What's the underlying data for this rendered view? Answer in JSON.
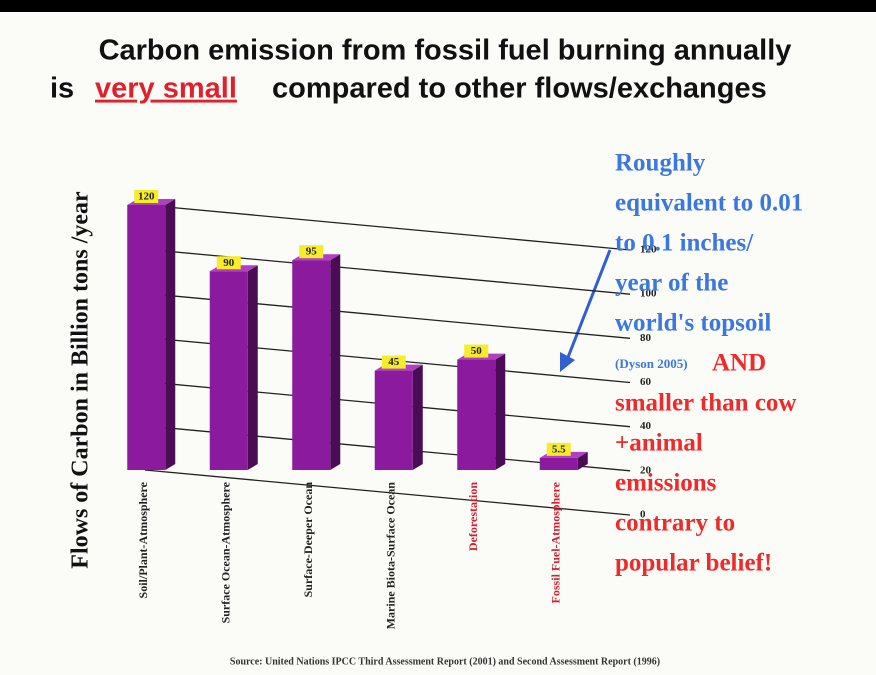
{
  "chart_data": {
    "type": "bar",
    "title": "Carbon emission from fossil fuel burning annually",
    "subtitle_parts": [
      "is",
      "very small",
      "compared to other flows/exchanges"
    ],
    "y_label": "Flows of Carbon in Billion tons /year",
    "categories": [
      "Soil/Plant-Atmosphere",
      "Surface Ocean-Atmosphere",
      "Surface-Deeper Ocean",
      "Marine Biota-Surface Ocean",
      "Deforestation",
      "Fossil Fuel-Atmosphere"
    ],
    "values": [
      120,
      90,
      95,
      45,
      50,
      5.5
    ],
    "color": "#8b1a9e",
    "ylim": [
      0,
      120
    ],
    "yticks": [
      0,
      20,
      40,
      60,
      80,
      100,
      120
    ],
    "grid": true,
    "annotation_blue": [
      "Roughly",
      "equivalent to 0.01",
      "to 0.1 inches/",
      "year of the",
      "world's topsoil",
      "(Dyson 2005)"
    ],
    "annotation_red": [
      "AND",
      "smaller than cow",
      "+animal",
      "emissions",
      "contrary to",
      "popular belief!"
    ],
    "source": "Source: United Nations IPCC Third Assessment Report (2001) and Second Assessment Report (1996)"
  }
}
